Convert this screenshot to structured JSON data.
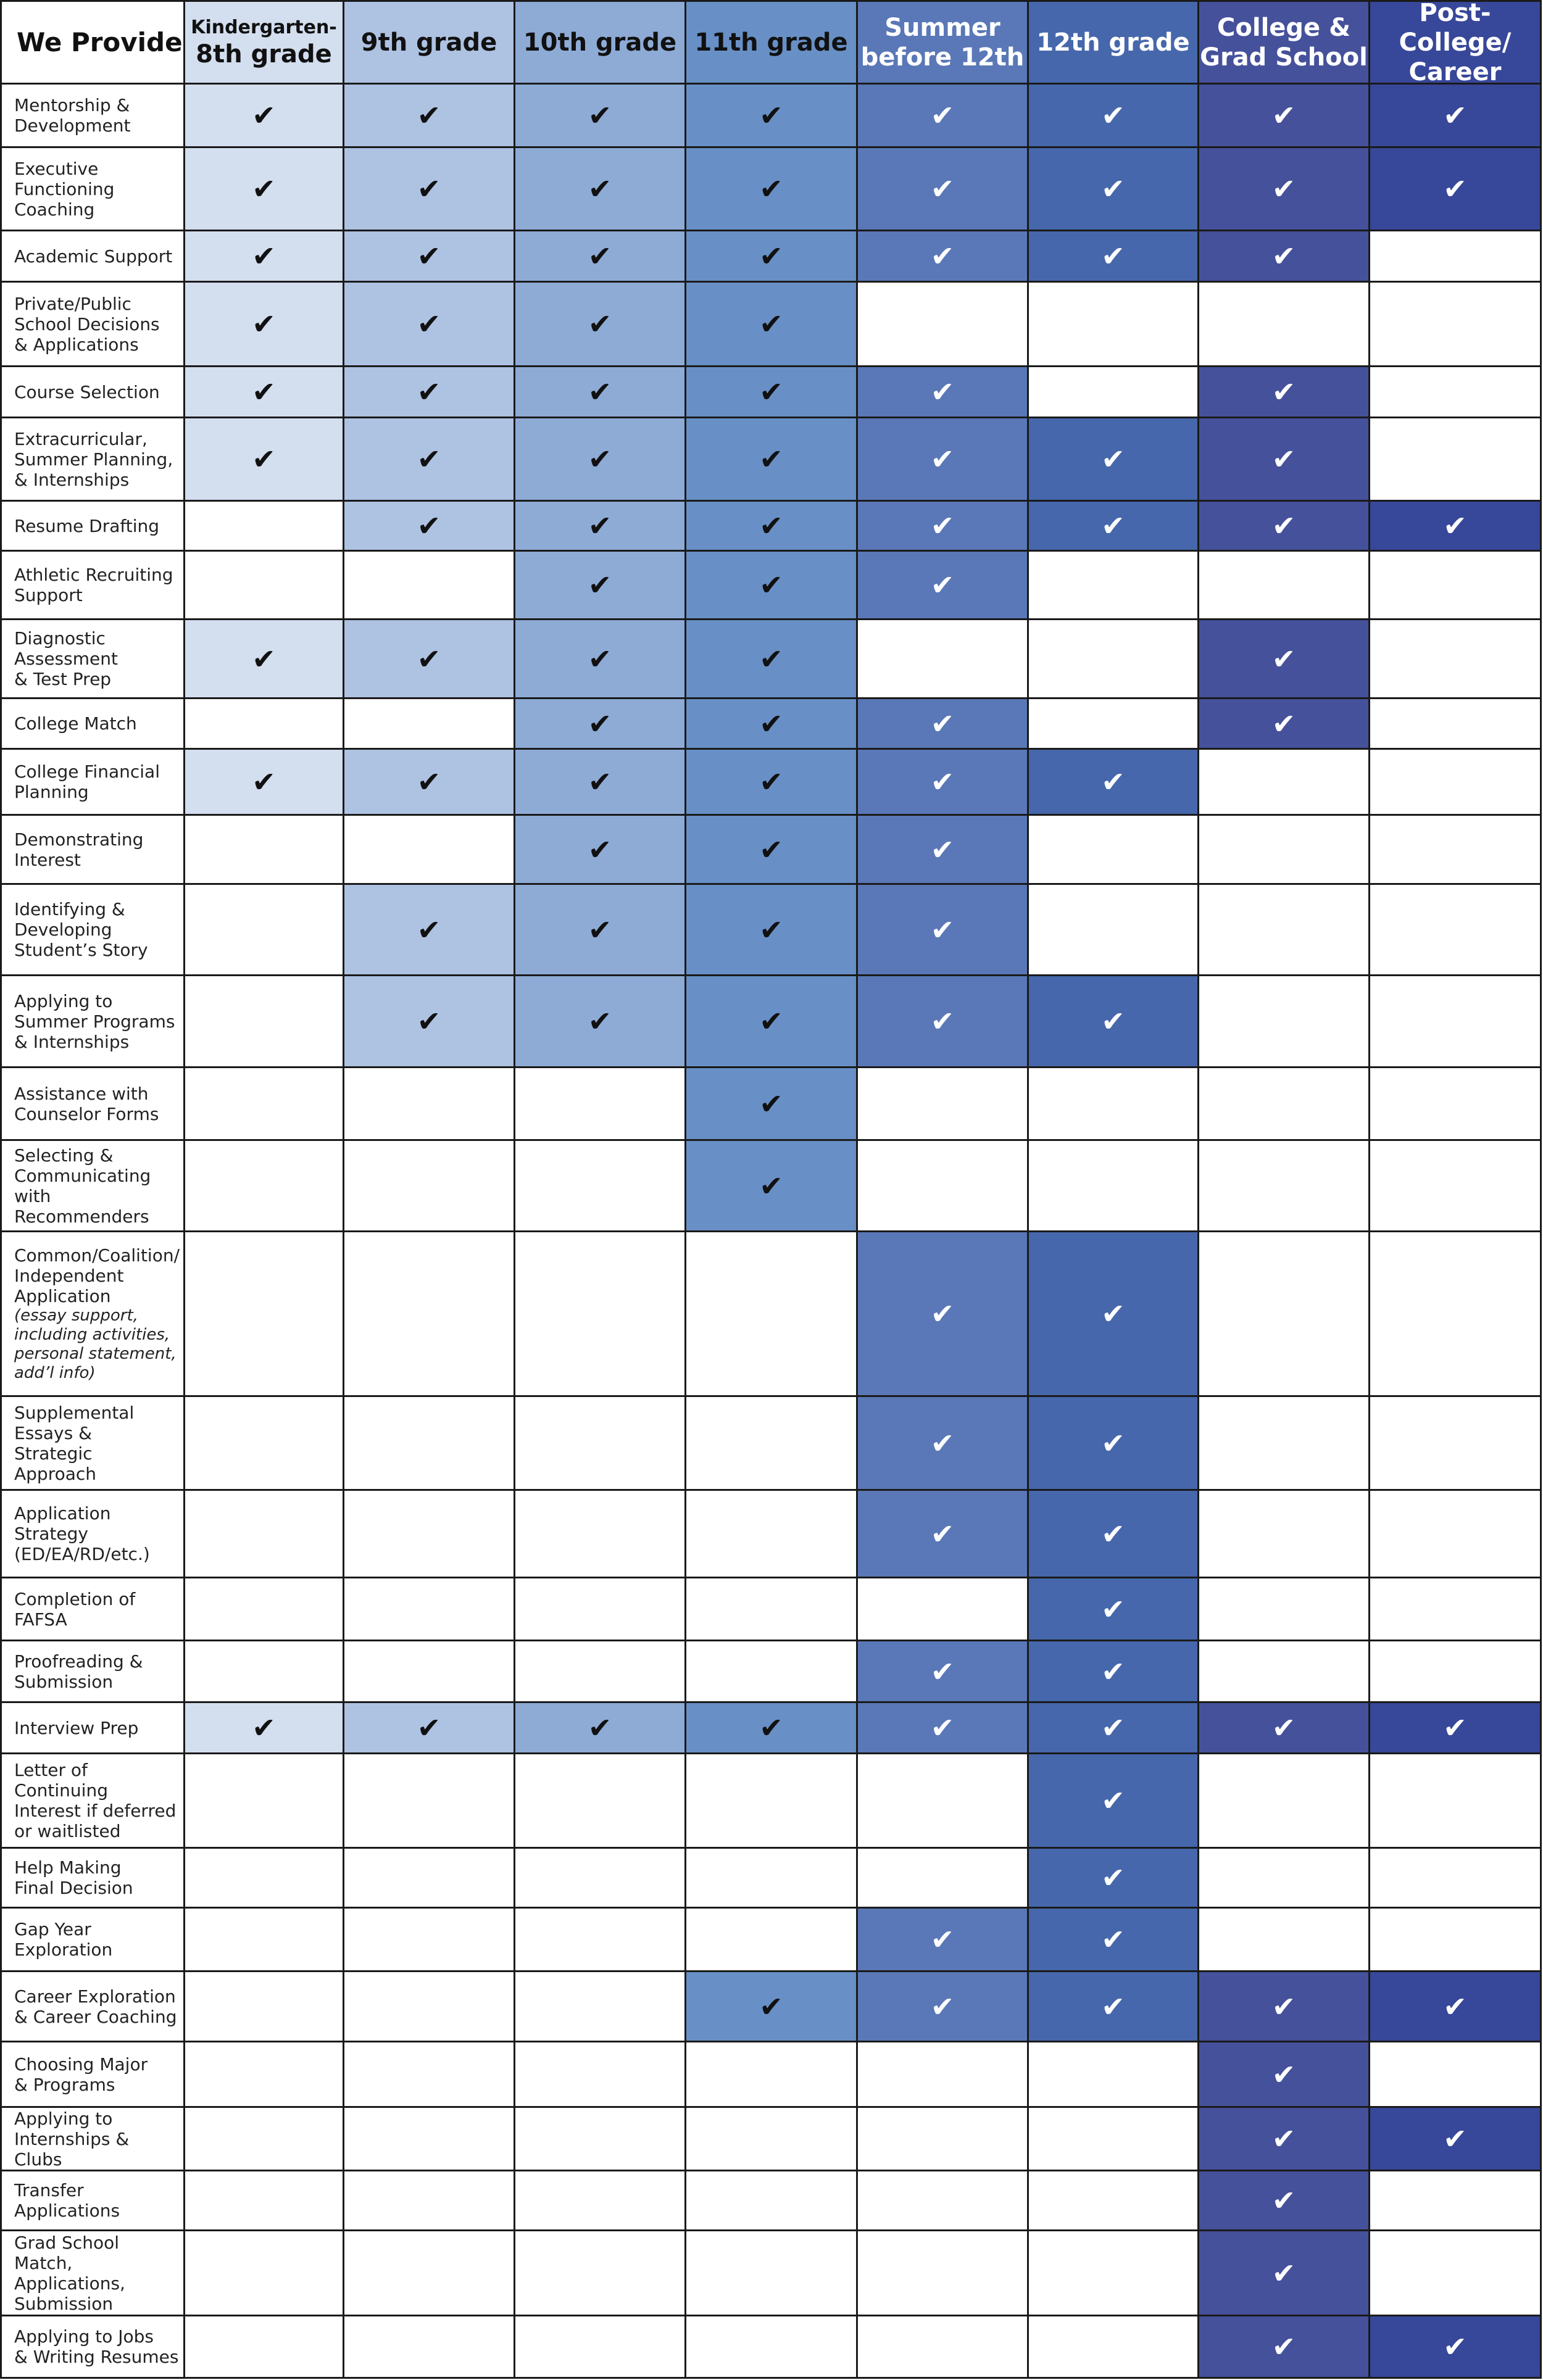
{
  "corner_label": "We Provide",
  "check_glyph": "✔",
  "columns": [
    {
      "key": "k8",
      "label_small": "Kindergarten-",
      "label": "8th grade",
      "color": "#d3deef",
      "text_color": "#111111"
    },
    {
      "key": "g9",
      "label": "9th grade",
      "color": "#aec2e2",
      "text_color": "#111111"
    },
    {
      "key": "g10",
      "label": "10th grade",
      "color": "#8eabd6",
      "text_color": "#111111"
    },
    {
      "key": "g11",
      "label": "11th grade",
      "color": "#6890c6",
      "text_color": "#111111"
    },
    {
      "key": "summer",
      "label": "Summer\nbefore 12th",
      "color": "#5a78b7",
      "text_color": "#ffffff"
    },
    {
      "key": "g12",
      "label": "12th grade",
      "color": "#4667ab",
      "text_color": "#ffffff"
    },
    {
      "key": "college",
      "label": "College &\nGrad School",
      "color": "#45519a",
      "text_color": "#ffffff"
    },
    {
      "key": "career",
      "label": "Post-College/\nCareer",
      "color": "#374799",
      "text_color": "#ffffff"
    }
  ],
  "rows": [
    {
      "label": "Mentorship &\nDevelopment",
      "checks": [
        1,
        1,
        1,
        1,
        1,
        1,
        1,
        1
      ]
    },
    {
      "label": "Executive\nFunctioning\nCoaching",
      "checks": [
        1,
        1,
        1,
        1,
        1,
        1,
        1,
        1
      ]
    },
    {
      "label": "Academic Support",
      "checks": [
        1,
        1,
        1,
        1,
        1,
        1,
        1,
        0
      ]
    },
    {
      "label": "Private/Public\nSchool Decisions\n& Applications",
      "checks": [
        1,
        1,
        1,
        1,
        0,
        0,
        0,
        0
      ]
    },
    {
      "label": "Course Selection",
      "checks": [
        1,
        1,
        1,
        1,
        1,
        0,
        1,
        0
      ]
    },
    {
      "label": "Extracurricular,\nSummer Planning,\n& Internships",
      "checks": [
        1,
        1,
        1,
        1,
        1,
        1,
        1,
        0
      ]
    },
    {
      "label": "Resume Drafting",
      "checks": [
        0,
        1,
        1,
        1,
        1,
        1,
        1,
        1
      ]
    },
    {
      "label": "Athletic Recruiting\nSupport",
      "checks": [
        0,
        0,
        1,
        1,
        1,
        0,
        0,
        0
      ]
    },
    {
      "label": "Diagnostic\nAssessment\n& Test Prep",
      "checks": [
        1,
        1,
        1,
        1,
        0,
        0,
        1,
        0
      ]
    },
    {
      "label": "College Match",
      "checks": [
        0,
        0,
        1,
        1,
        1,
        0,
        1,
        0
      ]
    },
    {
      "label": "College Financial\nPlanning",
      "checks": [
        1,
        1,
        1,
        1,
        1,
        1,
        0,
        0
      ]
    },
    {
      "label": "Demonstrating\nInterest",
      "checks": [
        0,
        0,
        1,
        1,
        1,
        0,
        0,
        0
      ]
    },
    {
      "label": "Identifying &\nDeveloping\nStudent’s Story",
      "checks": [
        0,
        1,
        1,
        1,
        1,
        0,
        0,
        0
      ]
    },
    {
      "label": "Applying to\nSummer Programs\n& Internships",
      "checks": [
        0,
        1,
        1,
        1,
        1,
        1,
        0,
        0
      ]
    },
    {
      "label": "Assistance with\nCounselor Forms",
      "checks": [
        0,
        0,
        0,
        1,
        0,
        0,
        0,
        0
      ]
    },
    {
      "label": "Selecting &\nCommunicating with\nRecommenders",
      "checks": [
        0,
        0,
        0,
        1,
        0,
        0,
        0,
        0
      ]
    },
    {
      "label": "Common/Coalition/\nIndependent\nApplication",
      "note": "(essay support,\nincluding activities,\npersonal statement,\nadd’l info)",
      "checks": [
        0,
        0,
        0,
        0,
        1,
        1,
        0,
        0
      ]
    },
    {
      "label": "Supplemental\nEssays &\nStrategic Approach",
      "checks": [
        0,
        0,
        0,
        0,
        1,
        1,
        0,
        0
      ]
    },
    {
      "label": "Application\nStrategy\n(ED/EA/RD/etc.)",
      "checks": [
        0,
        0,
        0,
        0,
        1,
        1,
        0,
        0
      ]
    },
    {
      "label": "Completion of\nFAFSA",
      "checks": [
        0,
        0,
        0,
        0,
        0,
        1,
        0,
        0
      ]
    },
    {
      "label": "Proofreading &\nSubmission",
      "checks": [
        0,
        0,
        0,
        0,
        1,
        1,
        0,
        0
      ]
    },
    {
      "label": "Interview Prep",
      "checks": [
        1,
        1,
        1,
        1,
        1,
        1,
        1,
        1
      ]
    },
    {
      "label": "Letter of Continuing\nInterest if deferred\nor waitlisted",
      "checks": [
        0,
        0,
        0,
        0,
        0,
        1,
        0,
        0
      ]
    },
    {
      "label": "Help Making\nFinal Decision",
      "checks": [
        0,
        0,
        0,
        0,
        0,
        1,
        0,
        0
      ]
    },
    {
      "label": "Gap Year\nExploration",
      "checks": [
        0,
        0,
        0,
        0,
        1,
        1,
        0,
        0
      ]
    },
    {
      "label": "Career Exploration\n& Career Coaching",
      "checks": [
        0,
        0,
        0,
        1,
        1,
        1,
        1,
        1
      ]
    },
    {
      "label": "Choosing Major\n& Programs",
      "checks": [
        0,
        0,
        0,
        0,
        0,
        0,
        1,
        0
      ]
    },
    {
      "label": "Applying to\nInternships & Clubs",
      "checks": [
        0,
        0,
        0,
        0,
        0,
        0,
        1,
        1
      ]
    },
    {
      "label": "Transfer\nApplications",
      "checks": [
        0,
        0,
        0,
        0,
        0,
        0,
        1,
        0
      ]
    },
    {
      "label": "Grad School Match,\nApplications,\nSubmission",
      "checks": [
        0,
        0,
        0,
        0,
        0,
        0,
        1,
        0
      ]
    },
    {
      "label": "Applying to Jobs\n& Writing Resumes",
      "checks": [
        0,
        0,
        0,
        0,
        0,
        0,
        1,
        1
      ]
    }
  ]
}
